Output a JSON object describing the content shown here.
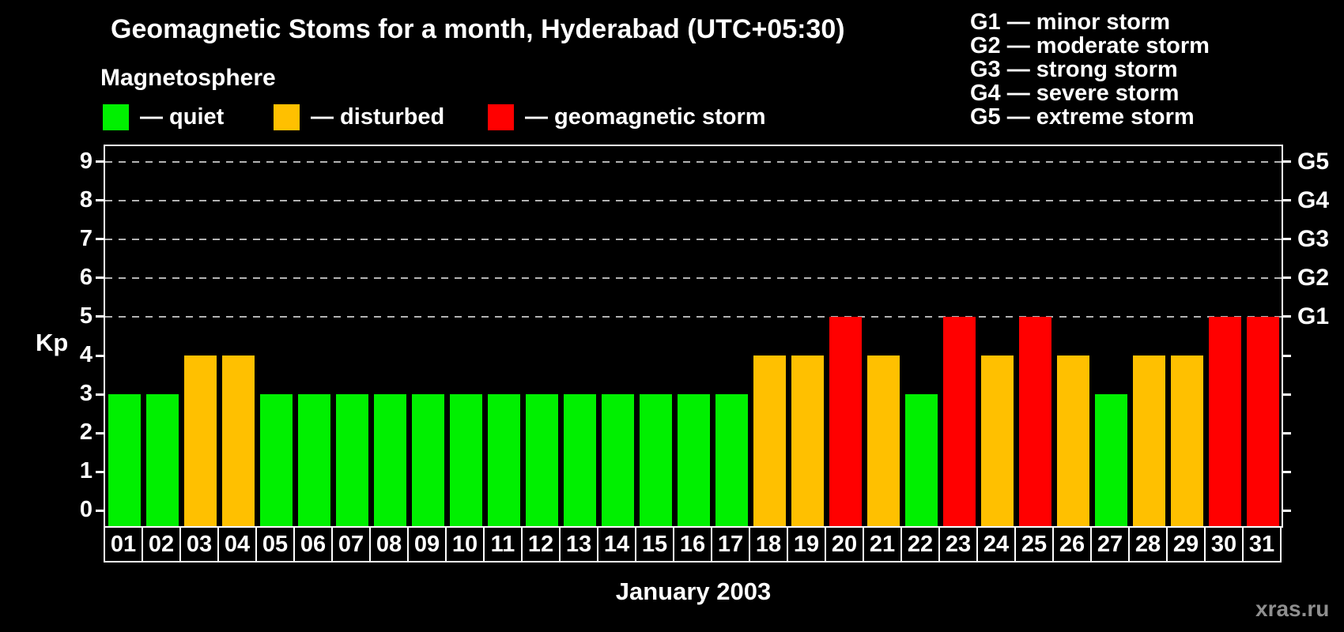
{
  "header": {
    "title": "Geomagnetic Stoms for a month, Hyderabad (UTC+05:30)",
    "subtitle": "Magnetosphere"
  },
  "legend": {
    "items": [
      {
        "state": "quiet",
        "label": "— quiet"
      },
      {
        "state": "disturbed",
        "label": "— disturbed"
      },
      {
        "state": "storm",
        "label": "— geomagnetic storm"
      }
    ]
  },
  "g_scale_legend": {
    "lines": [
      "G1 — minor storm",
      "G2 — moderate storm",
      "G3 — strong storm",
      "G4 — severe storm",
      "G5 — extreme storm"
    ]
  },
  "colors": {
    "quiet": "#00f000",
    "disturbed": "#ffc000",
    "storm": "#ff0000",
    "background": "#000000",
    "axis": "#ffffff",
    "grid": "#b3b3b3",
    "watermark": "#8f8f8f"
  },
  "chart_data": {
    "type": "bar",
    "title": "Geomagnetic Stoms for a month, Hyderabad (UTC+05:30)",
    "xlabel": "January 2003",
    "ylabel": "Kp",
    "ylim": [
      0,
      9
    ],
    "y_ticks": [
      0,
      1,
      2,
      3,
      4,
      5,
      6,
      7,
      8,
      9
    ],
    "gridlines_at": [
      5,
      6,
      7,
      8,
      9
    ],
    "grid_style": "dashed",
    "legend_position": "top-left",
    "right_axis": [
      {
        "kp": 5,
        "label": "G1"
      },
      {
        "kp": 6,
        "label": "G2"
      },
      {
        "kp": 7,
        "label": "G3"
      },
      {
        "kp": 8,
        "label": "G4"
      },
      {
        "kp": 9,
        "label": "G5"
      }
    ],
    "categories": [
      "01",
      "02",
      "03",
      "04",
      "05",
      "06",
      "07",
      "08",
      "09",
      "10",
      "11",
      "12",
      "13",
      "14",
      "15",
      "16",
      "17",
      "18",
      "19",
      "20",
      "21",
      "22",
      "23",
      "24",
      "25",
      "26",
      "27",
      "28",
      "29",
      "30",
      "31"
    ],
    "values": [
      3,
      3,
      4,
      4,
      3,
      3,
      3,
      3,
      3,
      3,
      3,
      3,
      3,
      3,
      3,
      3,
      3,
      4,
      4,
      5,
      4,
      3,
      5,
      4,
      5,
      4,
      3,
      4,
      4,
      5,
      5
    ],
    "states": [
      "quiet",
      "quiet",
      "disturbed",
      "disturbed",
      "quiet",
      "quiet",
      "quiet",
      "quiet",
      "quiet",
      "quiet",
      "quiet",
      "quiet",
      "quiet",
      "quiet",
      "quiet",
      "quiet",
      "quiet",
      "disturbed",
      "disturbed",
      "storm",
      "disturbed",
      "quiet",
      "storm",
      "disturbed",
      "storm",
      "disturbed",
      "quiet",
      "disturbed",
      "disturbed",
      "storm",
      "storm"
    ]
  },
  "footer": {
    "watermark": "xras.ru"
  }
}
